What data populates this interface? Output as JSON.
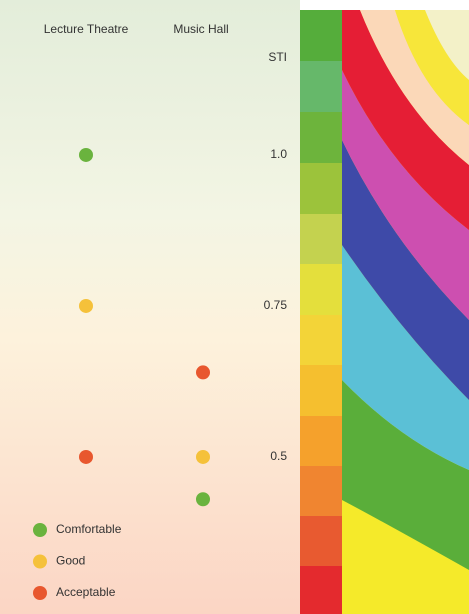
{
  "chart_data": {
    "type": "dot",
    "ylabel": "STI",
    "categories": [
      "Lecture Theatre",
      "Music Hall"
    ],
    "series": [
      {
        "name": "Comfortable",
        "color": "#6ab33e",
        "values": [
          1.0,
          0.43
        ]
      },
      {
        "name": "Good",
        "color": "#f5c13a",
        "values": [
          0.75,
          0.5
        ]
      },
      {
        "name": "Acceptable",
        "color": "#e8572e",
        "values": [
          0.5,
          0.64
        ]
      }
    ],
    "ylim": [
      0.24,
      1.24
    ],
    "yticks": [
      {
        "value": 1.0,
        "label": "1.0"
      },
      0.75,
      0.5
    ]
  }
}
